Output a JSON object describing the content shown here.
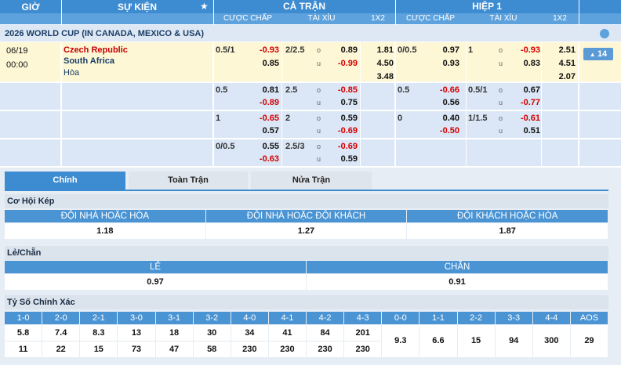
{
  "header": {
    "time": "GIỜ",
    "event": "SỰ KIỆN",
    "full_time": "CẢ TRẬN",
    "first_half": "HIỆP 1",
    "columns": [
      "CƯỢC CHẤP",
      "TÀI XỈU",
      "1X2"
    ]
  },
  "league": "2026 WORLD CUP (IN CANADA, MEXICO & USA)",
  "match": {
    "date": "06/19",
    "time": "00:00",
    "home": "Czech Republic",
    "away": "South Africa",
    "draw": "Hòa",
    "more": "14"
  },
  "ou_labels": {
    "over": "o",
    "under": "u"
  },
  "odds_rows": [
    {
      "full_time": {
        "hdp": {
          "line": "0.5/1",
          "home": "-0.93",
          "away": "0.85"
        },
        "ou": {
          "line": "2/2.5",
          "over": "0.89",
          "under": "-0.99"
        },
        "x12": [
          "1.81",
          "4.50",
          "3.48"
        ]
      },
      "first_half": {
        "hdp": {
          "line": "0/0.5",
          "home": "0.97",
          "away": "0.93"
        },
        "ou": {
          "line": "1",
          "over": "-0.93",
          "under": "0.83"
        },
        "x12": [
          "2.51",
          "4.51",
          "2.07"
        ]
      }
    },
    {
      "full_time": {
        "hdp": {
          "line": "0.5",
          "home": "0.81",
          "away": "-0.89"
        },
        "ou": {
          "line": "2.5",
          "over": "-0.85",
          "under": "0.75"
        }
      },
      "first_half": {
        "hdp": {
          "line": "0.5",
          "home": "-0.66",
          "away": "0.56"
        },
        "ou": {
          "line": "0.5/1",
          "over": "0.67",
          "under": "-0.77"
        }
      }
    },
    {
      "full_time": {
        "hdp": {
          "line": "1",
          "home": "-0.65",
          "away": "0.57"
        },
        "ou": {
          "line": "2",
          "over": "0.59",
          "under": "-0.69"
        }
      },
      "first_half": {
        "hdp": {
          "line": "0",
          "home": "0.40",
          "away": "-0.50"
        },
        "ou": {
          "line": "1/1.5",
          "over": "-0.61",
          "under": "0.51"
        }
      }
    },
    {
      "full_time": {
        "hdp": {
          "line": "0/0.5",
          "home": "0.55",
          "away": "-0.63"
        },
        "ou": {
          "line": "2.5/3",
          "over": "-0.69",
          "under": "0.59"
        }
      }
    }
  ],
  "tabs": [
    "Chính",
    "Toàn Trận",
    "Nửa Trận"
  ],
  "double_chance": {
    "title": "Cơ Hội Kép",
    "headers": [
      "ĐỘI NHÀ HOẶC HÒA",
      "ĐỘI NHÀ HOẶC ĐỘI KHÁCH",
      "ĐỘI KHÁCH HOẶC HÒA"
    ],
    "values": [
      "1.18",
      "1.27",
      "1.87"
    ]
  },
  "odd_even": {
    "title": "Lẻ/Chẵn",
    "headers": [
      "LẺ",
      "CHẴN"
    ],
    "values": [
      "0.97",
      "0.91"
    ]
  },
  "correct_score": {
    "title": "Tỷ Số Chính Xác",
    "headers": [
      "1-0",
      "2-0",
      "2-1",
      "3-0",
      "3-1",
      "3-2",
      "4-0",
      "4-1",
      "4-2",
      "4-3",
      "0-0",
      "1-1",
      "2-2",
      "3-3",
      "4-4",
      "AOS"
    ],
    "home_row": [
      "5.8",
      "7.4",
      "8.3",
      "13",
      "18",
      "30",
      "34",
      "41",
      "84",
      "201"
    ],
    "away_row": [
      "11",
      "22",
      "15",
      "73",
      "47",
      "58",
      "230",
      "230",
      "230",
      "230"
    ],
    "single_row": [
      "9.3",
      "6.6",
      "15",
      "94",
      "300",
      "29"
    ]
  }
}
